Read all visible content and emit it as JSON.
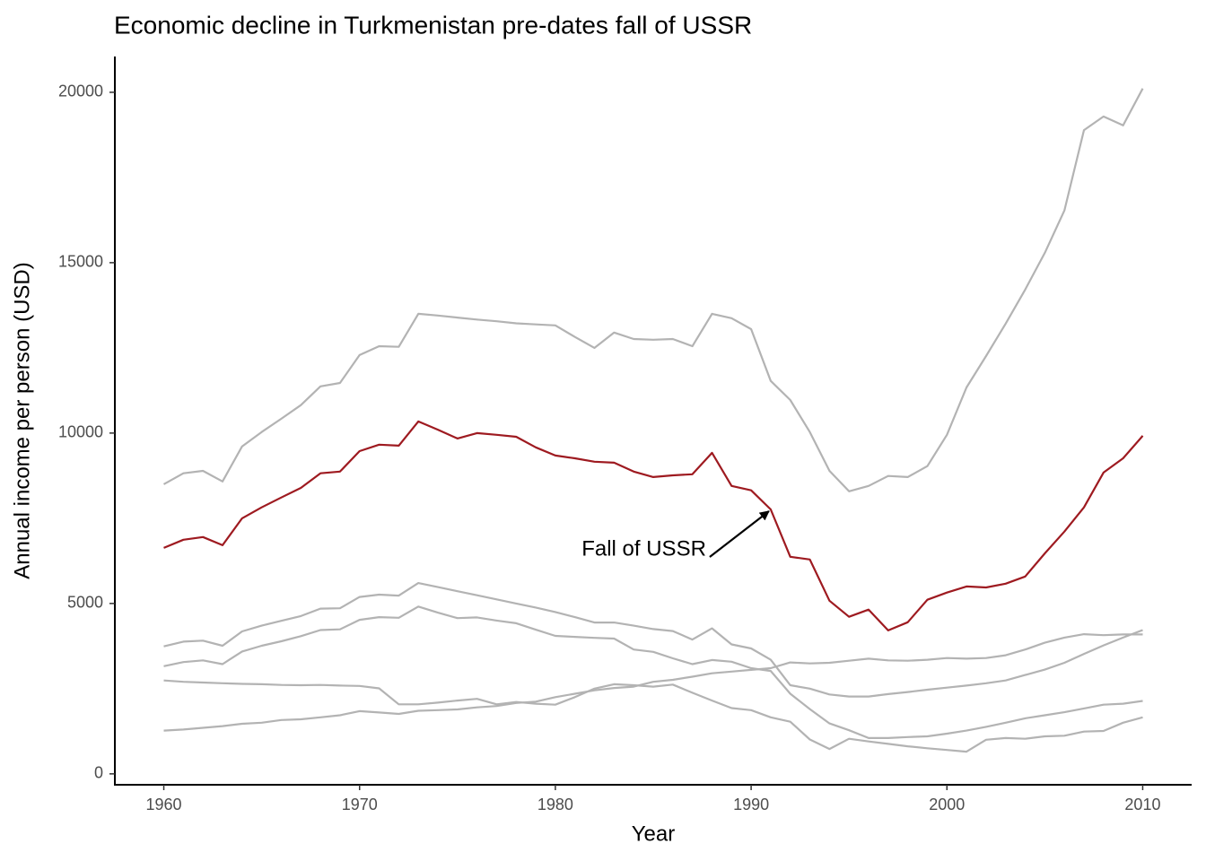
{
  "chart_data": {
    "type": "line",
    "title": "Economic decline in Turkmenistan pre-dates fall of USSR",
    "x_label": "Year",
    "y_label": "Annual income per person (USD)",
    "x": [
      1960,
      1961,
      1962,
      1963,
      1964,
      1965,
      1966,
      1967,
      1968,
      1969,
      1970,
      1971,
      1972,
      1973,
      1974,
      1975,
      1976,
      1977,
      1978,
      1979,
      1980,
      1981,
      1982,
      1983,
      1984,
      1985,
      1986,
      1987,
      1988,
      1989,
      1990,
      1991,
      1992,
      1993,
      1994,
      1995,
      1996,
      1997,
      1998,
      1999,
      2000,
      2001,
      2002,
      2003,
      2004,
      2005,
      2006,
      2007,
      2008,
      2009,
      2010
    ],
    "series": [
      {
        "color": "#9e1a20",
        "values": [
          6630,
          6870,
          6950,
          6710,
          7500,
          7820,
          8110,
          8390,
          8820,
          8870,
          9470,
          9660,
          9630,
          10340,
          10100,
          9840,
          10000,
          9950,
          9890,
          9580,
          9340,
          9260,
          9160,
          9130,
          8870,
          8710,
          8760,
          8790,
          9420,
          8450,
          8320,
          7760,
          6370,
          6290,
          5080,
          4610,
          4820,
          4210,
          4450,
          5110,
          5320,
          5500,
          5470,
          5580,
          5790,
          6470,
          7110,
          7820,
          8840,
          9260,
          9920
        ]
      },
      {
        "color": "#b3b3b3",
        "values": [
          8500,
          8820,
          8890,
          8580,
          9610,
          10030,
          10420,
          10820,
          11370,
          11470,
          12290,
          12550,
          12530,
          13500,
          13450,
          13390,
          13330,
          13280,
          13220,
          13190,
          13160,
          12820,
          12500,
          12950,
          12760,
          12740,
          12760,
          12550,
          13500,
          13370,
          13050,
          11530,
          10970,
          10030,
          8890,
          8290,
          8450,
          8740,
          8710,
          9030,
          9950,
          11340,
          12260,
          13210,
          14210,
          15290,
          16530,
          18890,
          19290,
          19030,
          20110
        ]
      },
      {
        "color": "#b3b3b3",
        "values": [
          3740,
          3880,
          3910,
          3760,
          4180,
          4350,
          4490,
          4630,
          4850,
          4860,
          5190,
          5260,
          5230,
          5600,
          5480,
          5360,
          5240,
          5120,
          5000,
          4880,
          4750,
          4600,
          4440,
          4440,
          4350,
          4250,
          4190,
          3940,
          4270,
          3800,
          3680,
          3350,
          2600,
          2500,
          2330,
          2270,
          2270,
          2340,
          2400,
          2470,
          2530,
          2590,
          2660,
          2740,
          2900,
          3060,
          3260,
          3520,
          3770,
          4000,
          4220
        ]
      },
      {
        "color": "#b3b3b3",
        "values": [
          3160,
          3280,
          3330,
          3220,
          3590,
          3760,
          3890,
          4040,
          4220,
          4240,
          4520,
          4600,
          4580,
          4910,
          4730,
          4570,
          4590,
          4500,
          4420,
          4230,
          4050,
          4020,
          3990,
          3970,
          3650,
          3580,
          3390,
          3220,
          3340,
          3290,
          3100,
          3020,
          2350,
          1900,
          1480,
          1280,
          1050,
          1050,
          1080,
          1100,
          1180,
          1270,
          1380,
          1500,
          1630,
          1720,
          1810,
          1920,
          2030,
          2060,
          2140
        ]
      },
      {
        "color": "#b3b3b3",
        "values": [
          2740,
          2700,
          2680,
          2660,
          2640,
          2630,
          2610,
          2600,
          2610,
          2590,
          2580,
          2510,
          2040,
          2040,
          2090,
          2150,
          2200,
          2040,
          2110,
          2060,
          2030,
          2250,
          2500,
          2630,
          2600,
          2560,
          2620,
          2380,
          2150,
          1930,
          1870,
          1660,
          1530,
          1010,
          730,
          1030,
          950,
          880,
          810,
          750,
          700,
          650,
          1000,
          1050,
          1030,
          1100,
          1120,
          1240,
          1260,
          1500,
          1660
        ]
      },
      {
        "color": "#b3b3b3",
        "values": [
          1270,
          1300,
          1350,
          1400,
          1470,
          1500,
          1580,
          1600,
          1660,
          1720,
          1840,
          1800,
          1760,
          1850,
          1870,
          1890,
          1950,
          1990,
          2080,
          2120,
          2250,
          2350,
          2450,
          2520,
          2560,
          2700,
          2760,
          2850,
          2950,
          3000,
          3050,
          3100,
          3270,
          3240,
          3260,
          3320,
          3380,
          3330,
          3320,
          3350,
          3400,
          3380,
          3400,
          3480,
          3650,
          3850,
          4000,
          4100,
          4070,
          4090,
          4090
        ]
      }
    ],
    "xlim": [
      1957.5,
      2012.5
    ],
    "xticks": [
      1960,
      1970,
      1980,
      1990,
      2000,
      2010
    ],
    "ylim": [
      -320,
      21050
    ],
    "yticks": [
      0,
      5000,
      10000,
      15000,
      20000
    ],
    "grid": false,
    "annotation": {
      "text": "Fall of USSR",
      "x": 1991,
      "series": 0
    }
  }
}
